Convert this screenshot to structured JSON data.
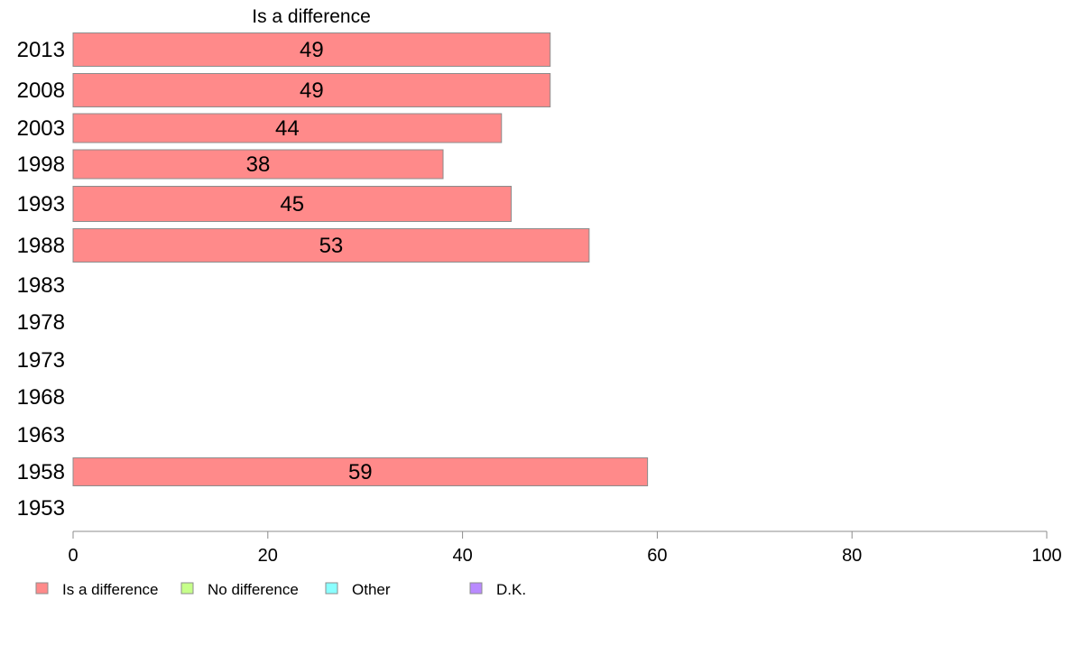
{
  "chart_data": {
    "type": "bar",
    "orientation": "horizontal",
    "title": "Is a difference",
    "xlabel": "",
    "ylabel": "",
    "categories": [
      "2013",
      "2008",
      "2003",
      "1998",
      "1993",
      "1988",
      "1983",
      "1978",
      "1973",
      "1968",
      "1963",
      "1958",
      "1953"
    ],
    "series": [
      {
        "name": "Is a difference",
        "color": "#ff8a8a",
        "values": [
          49,
          49,
          44,
          38,
          45,
          53,
          null,
          null,
          null,
          null,
          null,
          59,
          null
        ],
        "labels": [
          "49",
          "49",
          "44",
          "38",
          "45",
          "53",
          "",
          "",
          "",
          "",
          "",
          "59",
          ""
        ]
      }
    ],
    "xlim": [
      0,
      100
    ],
    "xticks": [
      "0",
      "20",
      "40",
      "60",
      "80",
      "100"
    ],
    "grid": false,
    "legend_position": "bottom",
    "legend": [
      {
        "label": "Is a difference",
        "color": "#ff8a8a"
      },
      {
        "label": "No difference",
        "color": "#c6ff8a"
      },
      {
        "label": "Other",
        "color": "#8affff"
      },
      {
        "label": "D.K.",
        "color": "#b98aff"
      }
    ]
  }
}
